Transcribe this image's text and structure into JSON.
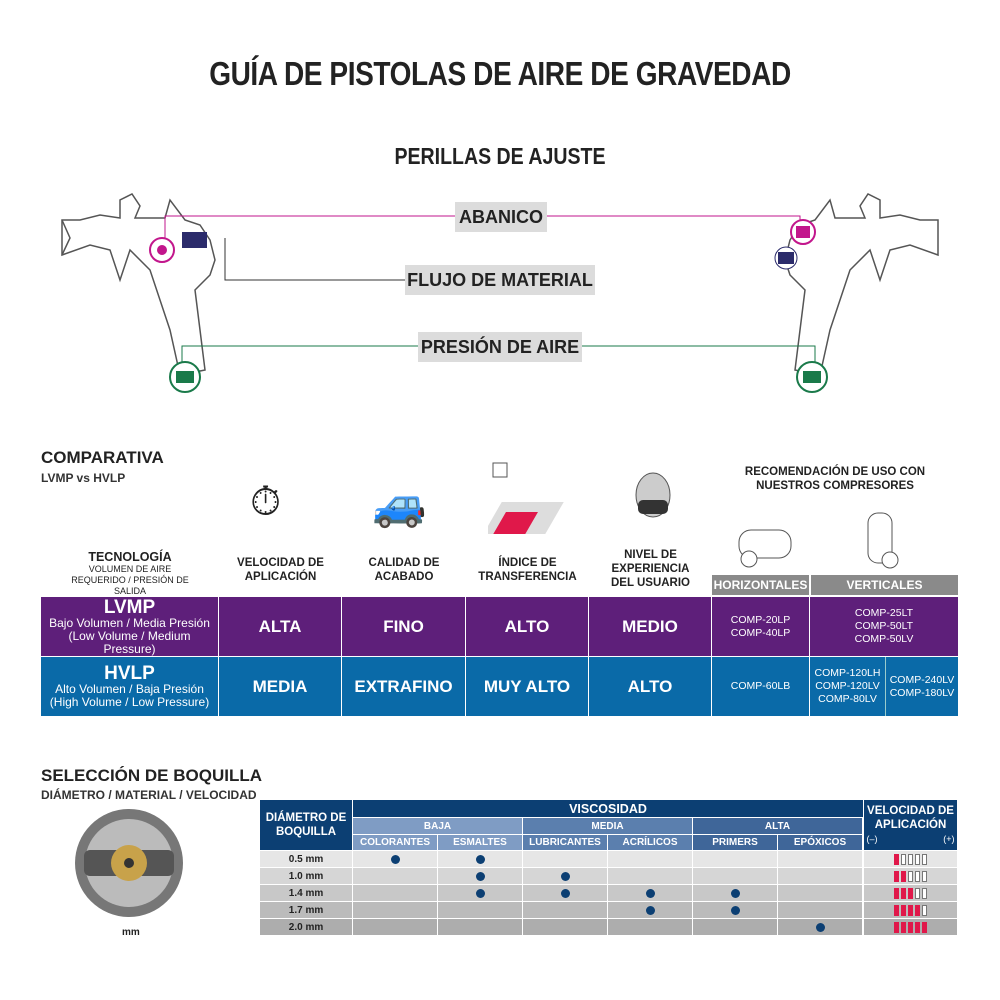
{
  "title": "GUÍA DE PISTOLAS DE AIRE DE GRAVEDAD",
  "knobs": {
    "heading": "PERILLAS DE AJUSTE",
    "fan": "ABANICO",
    "flow": "FLUJO DE MATERIAL",
    "air": "PRESIÓN DE AIRE",
    "colors": {
      "fan": "#c2168c",
      "flow": "#2b2b6b",
      "air": "#1a7a4a"
    }
  },
  "comparison": {
    "heading": "COMPARATIVA",
    "subheading": "LVMP vs HVLP",
    "tech_header": "TECNOLOGÍA",
    "tech_sub": "VOLUMEN DE AIRE REQUERIDO / PRESIÓN DE SALIDA",
    "columns": [
      "VELOCIDAD DE APLICACIÓN",
      "CALIDAD DE ACABADO",
      "ÍNDICE DE TRANSFERENCIA",
      "NIVEL DE EXPERIENCIA DEL USUARIO"
    ],
    "column_icons": [
      "stopwatch-icon",
      "car-icon",
      "spray-transfer-icon",
      "respirator-mask-icon"
    ],
    "recommend_header": "RECOMENDACIÓN DE USO CON NUESTROS COMPRESORES",
    "horizontal": "HORIZONTALES",
    "vertical": "VERTICALES",
    "rows": [
      {
        "name": "LVMP",
        "desc": "Bajo Volumen / Media Presión",
        "desc_en": "(Low Volume / Medium Pressure)",
        "values": [
          "ALTA",
          "FINO",
          "ALTO",
          "MEDIO"
        ],
        "horizontal": "COMP-20LP\nCOMP-40LP",
        "vertical_a": "COMP-25LT\nCOMP-50LT\nCOMP-50LV",
        "vertical_b": "",
        "color": "#5e1f7a"
      },
      {
        "name": "HVLP",
        "desc": "Alto Volumen / Baja Presión",
        "desc_en": "(High Volume / Low Pressure)",
        "values": [
          "MEDIA",
          "EXTRAFINO",
          "MUY ALTO",
          "ALTO"
        ],
        "horizontal": "COMP-60LB",
        "vertical_a": "COMP-120LH\nCOMP-120LV\nCOMP-80LV",
        "vertical_b": "COMP-240LV\nCOMP-180LV",
        "color": "#0a6aa8"
      }
    ]
  },
  "nozzle": {
    "heading": "SELECCIÓN DE BOQUILLA",
    "subheading": "DIÁMETRO / MATERIAL / VELOCIDAD",
    "unit_label": "mm",
    "diam_header": "DIÁMETRO DE BOQUILLA",
    "visc_header": "VISCOSIDAD",
    "speed_header": "VELOCIDAD DE APLICACIÓN",
    "minus": "(–)",
    "plus": "(+)",
    "groups": [
      "BAJA",
      "MEDIA",
      "ALTA"
    ],
    "materials": [
      "COLORANTES",
      "ESMALTES",
      "LUBRICANTES",
      "ACRÍLICOS",
      "PRIMERS",
      "EPÓXICOS"
    ],
    "rows": [
      {
        "diameter": "0.5 mm",
        "dots": [
          1,
          1,
          0,
          0,
          0,
          0
        ],
        "speed": 1
      },
      {
        "diameter": "1.0 mm",
        "dots": [
          0,
          1,
          1,
          0,
          0,
          0
        ],
        "speed": 2
      },
      {
        "diameter": "1.4 mm",
        "dots": [
          0,
          1,
          1,
          1,
          1,
          0
        ],
        "speed": 3
      },
      {
        "diameter": "1.7 mm",
        "dots": [
          0,
          0,
          0,
          1,
          1,
          0
        ],
        "speed": 4
      },
      {
        "diameter": "2.0 mm",
        "dots": [
          0,
          0,
          0,
          0,
          0,
          1
        ],
        "speed": 5
      }
    ],
    "speed_max": 5,
    "colors": {
      "navy": "#0c3f73",
      "dot": "#0c3f73",
      "speed": "#e0184a"
    }
  }
}
